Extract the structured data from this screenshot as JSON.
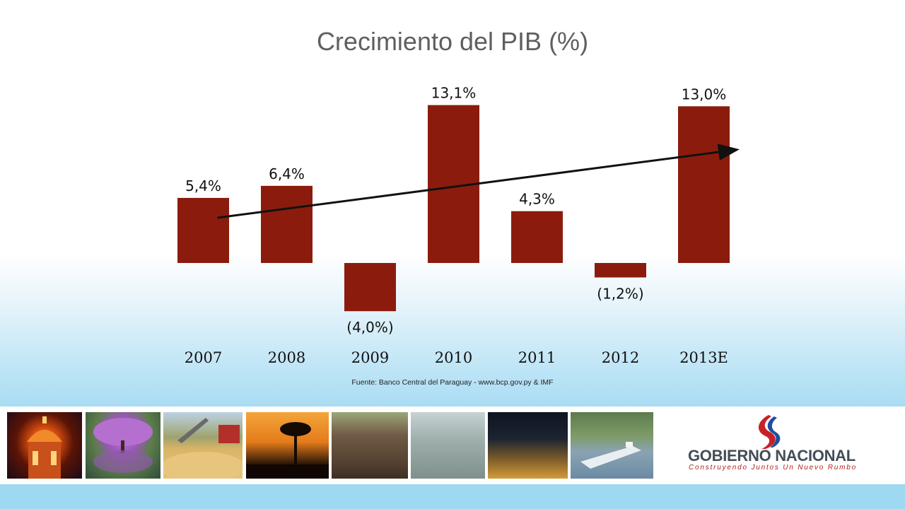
{
  "slide": {
    "title": "Crecimiento del PIB (%)",
    "source": "Fuente: Banco Central del Paraguay  - www.bcp.gov.py & IMF"
  },
  "chart_data": {
    "type": "bar",
    "title": "Crecimiento del PIB (%)",
    "categories": [
      "2007",
      "2008",
      "2009",
      "2010",
      "2011",
      "2012",
      "2013E"
    ],
    "values": [
      5.4,
      6.4,
      -4.0,
      13.1,
      4.3,
      -1.2,
      13.0
    ],
    "data_labels": [
      "5,4%",
      "6,4%",
      "(4,0%)",
      "13,1%",
      "4,3%",
      "(1,2%)",
      "13,0%"
    ],
    "xlabel": "",
    "ylabel": "",
    "ylim": [
      -4.5,
      14
    ],
    "grid": false,
    "legend": "none",
    "trend_arrow": true,
    "colors": {
      "bar": "#8b1c0d",
      "arrow": "#111111",
      "text": "#111111"
    }
  },
  "footer": {
    "photos": [
      "palace-photo",
      "flowering-tree-photo",
      "soybean-harvest-photo",
      "palm-sunset-photo",
      "cattle-photo",
      "factory-photo",
      "port-night-photo",
      "river-barge-photo"
    ],
    "logo": {
      "main": "GOBIERNO NACIONAL",
      "tagline": "Construyendo Juntos Un Nuevo Rumbo",
      "colors": {
        "text": "#434d57",
        "accent": "#b11f1f",
        "blue": "#1d4fa0"
      }
    }
  }
}
